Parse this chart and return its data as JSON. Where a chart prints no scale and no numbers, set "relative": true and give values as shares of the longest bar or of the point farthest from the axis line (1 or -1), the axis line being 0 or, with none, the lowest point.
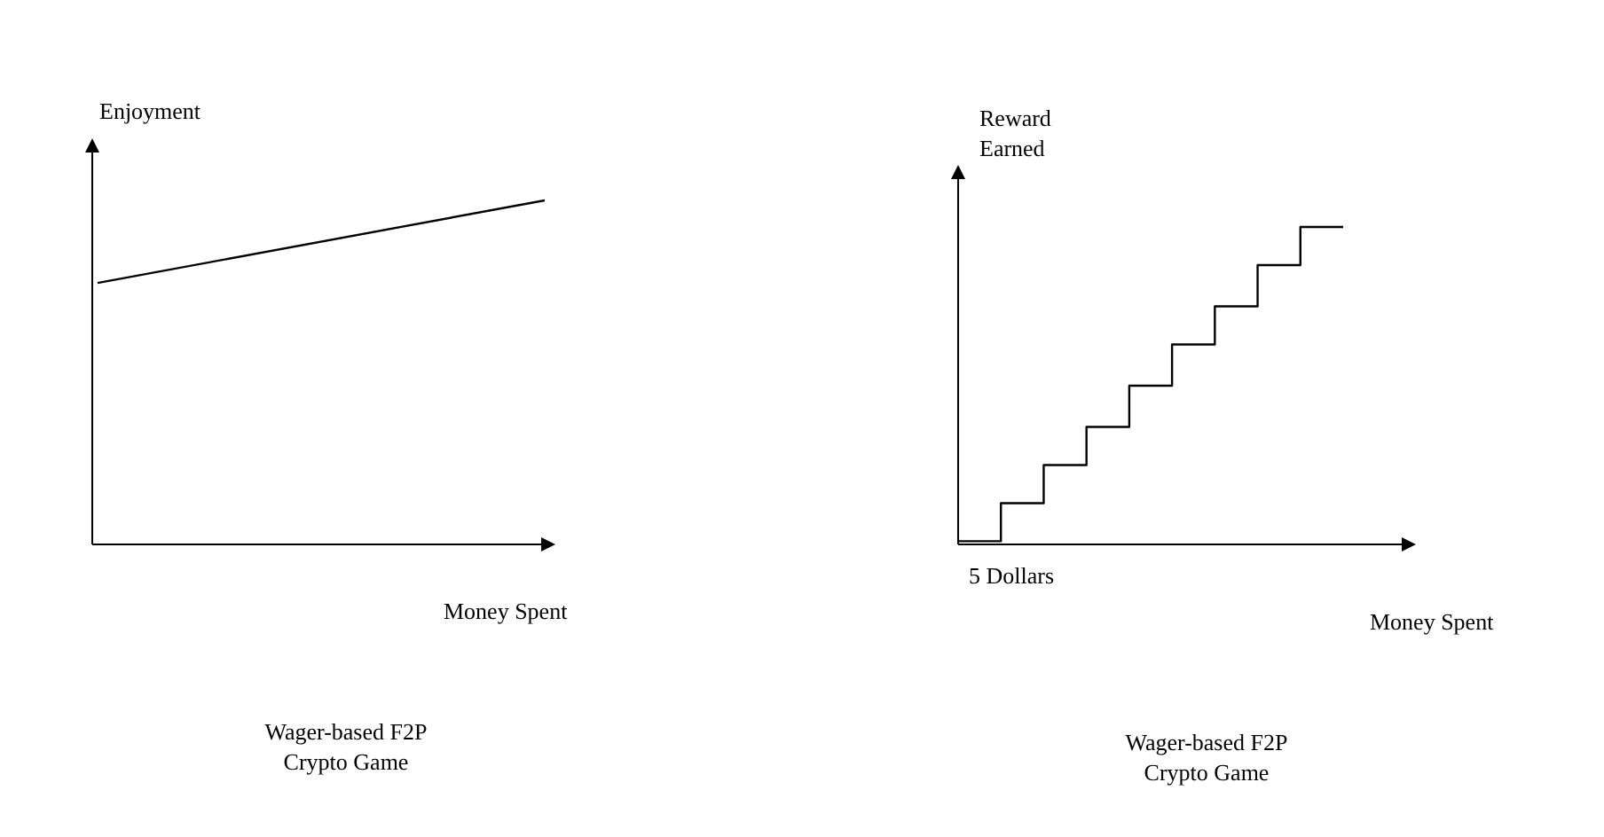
{
  "chart_data": [
    {
      "type": "line",
      "title": "Wager-based F2P Crypto Game",
      "xlabel": "Money Spent",
      "ylabel": "Enjoyment",
      "relative": true,
      "tick_labels": false,
      "categories": [
        null,
        null
      ],
      "color": "#000000",
      "values": [
        0.76,
        1
      ]
    },
    {
      "type": "step",
      "title": "Wager-based F2P Crypto Game",
      "xlabel": "Money Spent",
      "ylabel": "Reward Earned",
      "annotations": [
        "5 Dollars"
      ],
      "relative": true,
      "tick_labels": false,
      "categories": [
        null,
        null,
        null,
        null,
        null,
        null,
        null,
        null,
        null,
        null
      ],
      "color": "#000000",
      "values": [
        0.01,
        0.13,
        0.25,
        0.37,
        0.5,
        0.63,
        0.75,
        0.88,
        1,
        1
      ]
    }
  ]
}
